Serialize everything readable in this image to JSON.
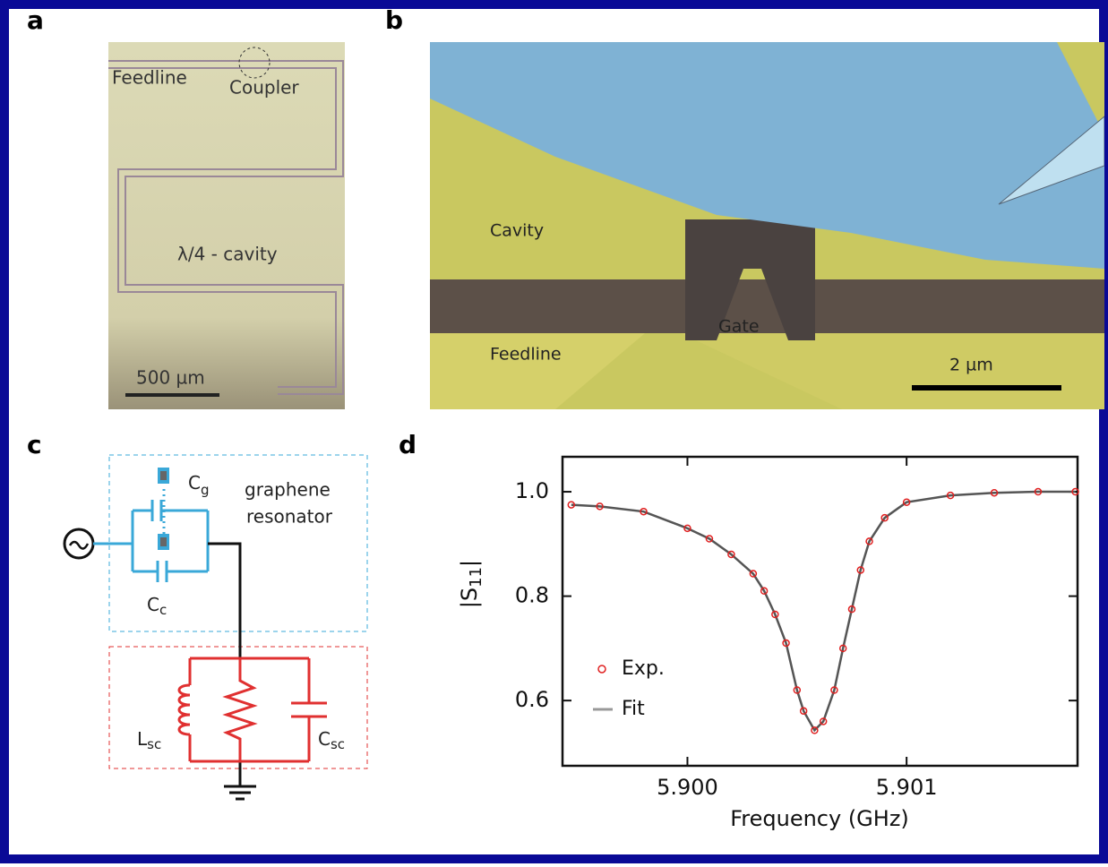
{
  "panels": {
    "a": {
      "label": "a",
      "texts": [
        "Feedline",
        "Coupler",
        "λ/4 - cavity",
        "500 µm"
      ]
    },
    "b": {
      "label": "b",
      "texts": [
        "Cavity",
        "Gate",
        "Feedline",
        "2 µm"
      ]
    },
    "c": {
      "label": "c",
      "cg": [
        "C",
        "g"
      ],
      "resonator": [
        "graphene",
        "resonator"
      ],
      "cc": [
        "C",
        "c"
      ],
      "lsc": [
        "L",
        "sc"
      ],
      "csc": [
        "C",
        "sc"
      ]
    },
    "d": {
      "label": "d"
    }
  },
  "chart_data": {
    "type": "scatter-line",
    "xlabel": "Frequency (GHz)",
    "ylabel": [
      "|S",
      "11",
      "|"
    ],
    "x": [
      5.89947,
      5.8996,
      5.8998,
      5.9,
      5.9001,
      5.9002,
      5.9003,
      5.90035,
      5.9004,
      5.90045,
      5.9005,
      5.90053,
      5.90058,
      5.90062,
      5.90067,
      5.90071,
      5.90075,
      5.90079,
      5.90083,
      5.9009,
      5.901,
      5.9012,
      5.9014,
      5.9016,
      5.90177
    ],
    "series": [
      {
        "name": "Exp.",
        "color": "#e02020",
        "style": "markers",
        "values": [
          0.975,
          0.972,
          0.962,
          0.93,
          0.91,
          0.88,
          0.843,
          0.81,
          0.765,
          0.71,
          0.62,
          0.58,
          0.543,
          0.56,
          0.62,
          0.7,
          0.775,
          0.85,
          0.905,
          0.95,
          0.98,
          0.993,
          0.998,
          1.0,
          1.0
        ]
      },
      {
        "name": "Fit",
        "color": "#555555",
        "style": "line",
        "values": [
          0.975,
          0.972,
          0.962,
          0.93,
          0.91,
          0.88,
          0.843,
          0.81,
          0.765,
          0.71,
          0.62,
          0.58,
          0.543,
          0.56,
          0.62,
          0.7,
          0.775,
          0.85,
          0.905,
          0.95,
          0.98,
          0.993,
          0.998,
          1.0,
          1.0
        ]
      }
    ],
    "xlim": [
      5.89943,
      5.90178
    ],
    "ylim": [
      0.475,
      1.067
    ],
    "xticks": [
      {
        "value": 5.9,
        "label": "5.900"
      },
      {
        "value": 5.901,
        "label": "5.901"
      }
    ],
    "yticks": [
      {
        "value": 0.6,
        "label": "0.6"
      },
      {
        "value": 0.8,
        "label": "0.8"
      },
      {
        "value": 1.0,
        "label": "1.0"
      }
    ],
    "legend": "lower-left"
  }
}
